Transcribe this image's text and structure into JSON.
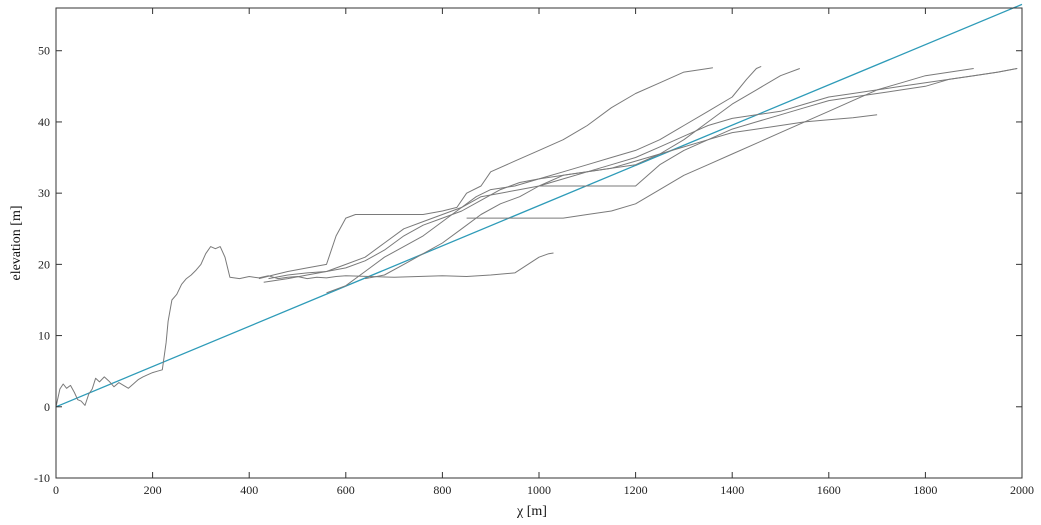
{
  "chart_data": {
    "type": "line",
    "xlabel": "χ [m]",
    "ylabel": "elevation [m]",
    "xlim": [
      0,
      2000
    ],
    "ylim": [
      -10,
      56
    ],
    "xticks": [
      "0",
      "200",
      "400",
      "600",
      "800",
      "1000",
      "1200",
      "1400",
      "1600",
      "1800",
      "2000"
    ],
    "yticks": [
      "-10",
      "0",
      "10",
      "20",
      "30",
      "40",
      "50"
    ],
    "grid": false,
    "legend": "none",
    "colors": {
      "profiles": "#7a7a7a",
      "reference": "#2e9bb8",
      "axes": "#333333"
    },
    "series": [
      {
        "style": "reference",
        "x": [
          0,
          2000
        ],
        "y": [
          0,
          56.5
        ]
      },
      {
        "style": "profile",
        "x": [
          0,
          8,
          15,
          22,
          30,
          38,
          45,
          52,
          60,
          68,
          75,
          82,
          90,
          100,
          110,
          120,
          130,
          140,
          150,
          160,
          170,
          180,
          190,
          200,
          210,
          220,
          228,
          232,
          240,
          250,
          260,
          270,
          280,
          290,
          300,
          310,
          320,
          330,
          340,
          350,
          360,
          380,
          400,
          420,
          440,
          460,
          480,
          500,
          520,
          540,
          560,
          580,
          600,
          650,
          700,
          750,
          800,
          850,
          900,
          950,
          1000,
          1020,
          1030
        ],
        "y": [
          0,
          2.5,
          3.2,
          2.6,
          3.0,
          2.0,
          1.0,
          0.8,
          0.2,
          1.8,
          2.5,
          4.0,
          3.5,
          4.2,
          3.6,
          2.8,
          3.4,
          3.0,
          2.6,
          3.2,
          3.8,
          4.2,
          4.5,
          4.8,
          5.0,
          5.2,
          9.0,
          12.0,
          15.0,
          15.8,
          17.2,
          18.0,
          18.5,
          19.2,
          20.0,
          21.5,
          22.5,
          22.2,
          22.5,
          21.0,
          18.2,
          18.0,
          18.3,
          18.1,
          18.4,
          18.0,
          18.2,
          18.3,
          18.0,
          18.2,
          18.1,
          18.3,
          18.4,
          18.3,
          18.2,
          18.3,
          18.4,
          18.3,
          18.5,
          18.8,
          21.0,
          21.5,
          21.6
        ]
      },
      {
        "style": "profile",
        "x": [
          420,
          450,
          480,
          520,
          560,
          580,
          600,
          620,
          700,
          760,
          800,
          830,
          850,
          880,
          900,
          950,
          1000,
          1050,
          1100,
          1150,
          1200,
          1250,
          1300,
          1350,
          1360
        ],
        "y": [
          18.0,
          18.5,
          19.0,
          19.5,
          20.0,
          24.0,
          26.5,
          27.0,
          27.0,
          27.0,
          27.5,
          28.0,
          30.0,
          31.0,
          33.0,
          34.5,
          36.0,
          37.5,
          39.5,
          42.0,
          44.0,
          45.5,
          47.0,
          47.5,
          47.6
        ]
      },
      {
        "style": "profile",
        "x": [
          430,
          480,
          520,
          560,
          600,
          640,
          680,
          720,
          760,
          800,
          840,
          870,
          900,
          950,
          1000,
          1050,
          1100,
          1150,
          1200,
          1250,
          1300,
          1350,
          1400,
          1430,
          1450,
          1460
        ],
        "y": [
          17.5,
          18.0,
          18.5,
          19.0,
          20.0,
          21.0,
          23.0,
          25.0,
          26.0,
          27.0,
          28.0,
          29.5,
          30.5,
          31.0,
          32.0,
          33.0,
          34.0,
          35.0,
          36.0,
          37.5,
          39.5,
          41.5,
          43.5,
          46.0,
          47.5,
          47.8
        ]
      },
      {
        "style": "profile",
        "x": [
          440,
          480,
          520,
          560,
          600,
          640,
          680,
          720,
          760,
          800,
          840,
          880,
          920,
          960,
          1000,
          1050,
          1100,
          1150,
          1200,
          1250,
          1300,
          1350,
          1400,
          1450,
          1500,
          1540
        ],
        "y": [
          18.0,
          18.5,
          18.8,
          19.0,
          19.5,
          20.5,
          22.0,
          24.0,
          25.5,
          26.5,
          27.5,
          29.0,
          30.5,
          31.5,
          32.0,
          32.5,
          33.0,
          33.5,
          34.0,
          35.5,
          37.5,
          40.0,
          42.5,
          44.5,
          46.5,
          47.5
        ]
      },
      {
        "style": "profile",
        "x": [
          560,
          600,
          640,
          680,
          720,
          760,
          800,
          840,
          880,
          920,
          960,
          1000,
          1050,
          1100,
          1150,
          1200,
          1250,
          1300,
          1350,
          1400,
          1450,
          1500,
          1550,
          1600,
          1650,
          1700,
          1750,
          1800,
          1850,
          1900,
          1950,
          1990
        ],
        "y": [
          16.0,
          17.0,
          19.0,
          21.0,
          22.5,
          24.0,
          26.0,
          28.0,
          29.5,
          30.0,
          30.5,
          31.0,
          31.0,
          31.0,
          31.0,
          31.0,
          34.0,
          36.0,
          37.5,
          39.0,
          40.0,
          41.0,
          42.0,
          43.0,
          43.5,
          44.0,
          44.5,
          45.0,
          46.0,
          46.5,
          47.0,
          47.5
        ]
      },
      {
        "style": "profile",
        "x": [
          640,
          680,
          720,
          760,
          800,
          840,
          880,
          920,
          960,
          1000,
          1050,
          1100,
          1150,
          1200,
          1250,
          1300,
          1350,
          1400,
          1450,
          1500,
          1550,
          1600,
          1650,
          1700
        ],
        "y": [
          18.0,
          18.5,
          20.0,
          21.5,
          23.0,
          25.0,
          27.0,
          28.5,
          29.5,
          31.0,
          32.5,
          33.0,
          33.5,
          34.5,
          35.5,
          36.5,
          37.5,
          38.5,
          39.0,
          39.5,
          40.0,
          40.3,
          40.6,
          41.0
        ]
      },
      {
        "style": "profile",
        "x": [
          850,
          900,
          950,
          1000,
          1050,
          1100,
          1150,
          1200,
          1250,
          1300,
          1350,
          1400,
          1450,
          1500,
          1550,
          1600,
          1650,
          1700,
          1750,
          1800,
          1850,
          1900
        ],
        "y": [
          26.5,
          26.5,
          26.5,
          26.5,
          26.5,
          27.0,
          27.5,
          28.5,
          30.5,
          32.5,
          34.0,
          35.5,
          37.0,
          38.5,
          40.0,
          41.5,
          43.0,
          44.5,
          45.5,
          46.5,
          47.0,
          47.5
        ]
      },
      {
        "style": "profile",
        "x": [
          1000,
          1050,
          1100,
          1150,
          1200,
          1250,
          1300,
          1350,
          1400,
          1450,
          1500,
          1550,
          1600,
          1650,
          1700,
          1750,
          1800,
          1850,
          1900,
          1950,
          1990
        ],
        "y": [
          31.0,
          32.0,
          33.0,
          34.0,
          35.0,
          36.5,
          38.0,
          39.5,
          40.5,
          41.0,
          41.5,
          42.5,
          43.5,
          44.0,
          44.5,
          45.0,
          45.5,
          46.0,
          46.5,
          47.0,
          47.5
        ]
      }
    ]
  }
}
